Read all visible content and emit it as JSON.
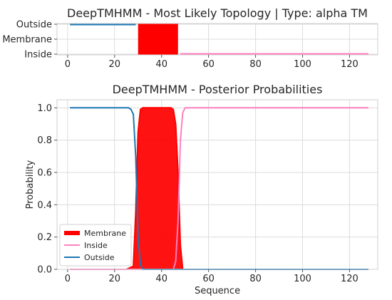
{
  "chart_data": [
    {
      "type": "line",
      "title": "DeepTMHMM - Most Likely Topology | Type: alpha TM",
      "xlim": [
        -4.5,
        132
      ],
      "xticks": [
        0,
        20,
        40,
        60,
        80,
        100,
        120
      ],
      "categories": [
        "Outside",
        "Membrane",
        "Inside"
      ],
      "grid": true,
      "segments": [
        {
          "name": "Outside",
          "level": "Outside",
          "start": 1,
          "end": 29,
          "color": "#1f77b4"
        },
        {
          "name": "Membrane",
          "level": "Membrane",
          "start": 30,
          "end": 47,
          "color": "#ff0000"
        },
        {
          "name": "Inside",
          "level": "Inside",
          "start": 48,
          "end": 128,
          "color": "#ff7fbf"
        }
      ]
    },
    {
      "type": "line",
      "title": "DeepTMHMM - Posterior Probabilities",
      "xlabel": "Sequence",
      "ylabel": "Probability",
      "xlim": [
        -4.5,
        132
      ],
      "ylim": [
        0,
        1.05
      ],
      "xticks": [
        0,
        20,
        40,
        60,
        80,
        100,
        120
      ],
      "yticks": [
        "0.0",
        "0.2",
        "0.4",
        "0.6",
        "0.8",
        "1.0"
      ],
      "grid": true,
      "legend_position": "lower-left",
      "series": [
        {
          "name": "Membrane",
          "color": "#ff0000",
          "fill": true,
          "x": [
            1,
            25,
            28,
            29,
            30,
            31,
            32,
            44,
            45,
            46,
            47,
            48,
            49,
            128
          ],
          "y": [
            0.0,
            0.0,
            0.02,
            0.35,
            0.85,
            0.99,
            1.0,
            1.0,
            0.99,
            0.9,
            0.6,
            0.15,
            0.0,
            0.0
          ]
        },
        {
          "name": "Inside",
          "color": "#ff7fbf",
          "fill": false,
          "x": [
            1,
            45,
            46,
            47,
            48,
            49,
            50,
            128
          ],
          "y": [
            0.0,
            0.0,
            0.05,
            0.3,
            0.8,
            0.97,
            1.0,
            1.0
          ]
        },
        {
          "name": "Outside",
          "color": "#1f77b4",
          "fill": false,
          "x": [
            1,
            26,
            27,
            28,
            29,
            30,
            31,
            32,
            128
          ],
          "y": [
            1.0,
            1.0,
            0.99,
            0.96,
            0.7,
            0.2,
            0.03,
            0.0,
            0.0
          ]
        }
      ]
    }
  ]
}
